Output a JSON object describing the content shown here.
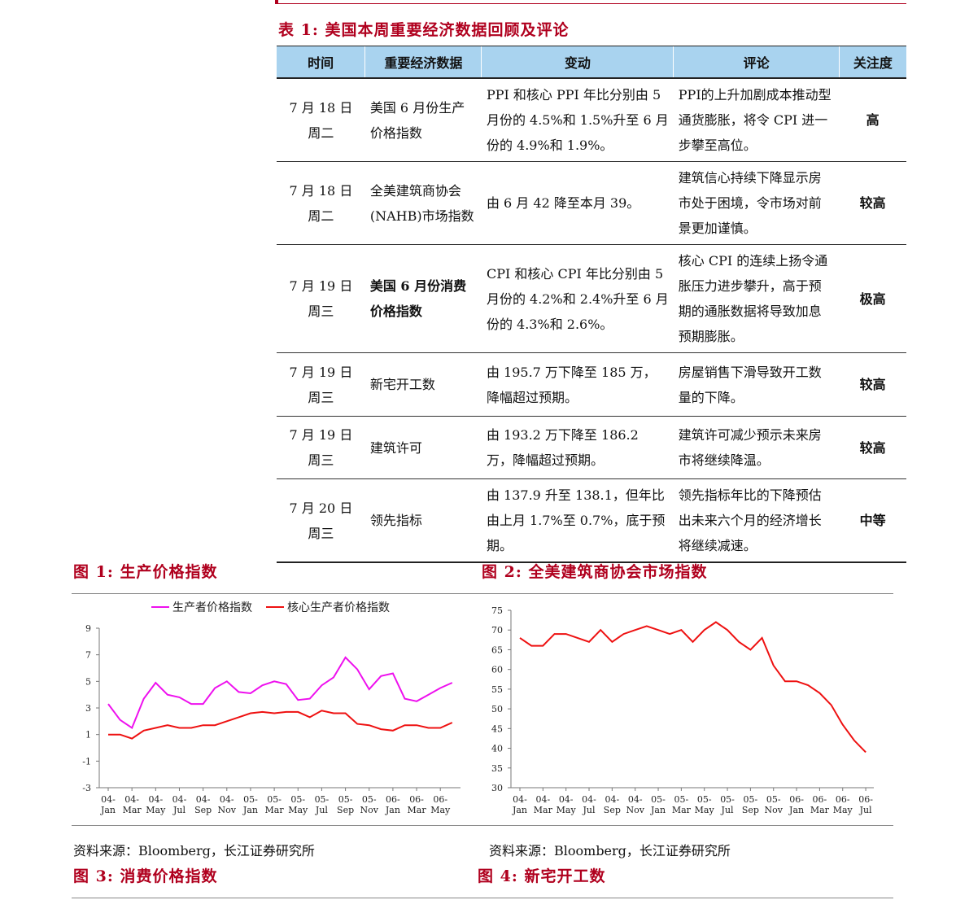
{
  "table": {
    "title": "表 1:  美国本周重要经济数据回顾及评论",
    "headers": [
      "时间",
      "重要经济数据",
      "变动",
      "评论",
      "关注度"
    ],
    "rows": [
      {
        "date": "7 月 18 日",
        "weekday": "周二",
        "indicator": "美国 6 月份生产价格指数",
        "change": "PPI 和核心 PPI 年比分别由 5 月份的 4.5%和 1.5%升至 6 月份的 4.9%和 1.9%。",
        "comment": "PPI的上升加剧成本推动型通货膨胀，将令 CPI 进一步攀至高位。",
        "attention": "高",
        "bold": false
      },
      {
        "date": "7 月 18 日",
        "weekday": "周二",
        "indicator": "全美建筑商协会(NAHB)市场指数",
        "change": "由 6 月 42 降至本月 39。",
        "comment": "建筑信心持续下降显示房市处于困境，令市场对前景更加谨慎。",
        "attention": "较高",
        "bold": false
      },
      {
        "date": "7 月 19 日",
        "weekday": "周三",
        "indicator": "美国 6 月份消费价格指数",
        "change": "CPI 和核心 CPI 年比分别由 5 月份的 4.2%和 2.4%升至 6 月份的 4.3%和 2.6%。",
        "comment": "核心 CPI 的连续上扬令通胀压力进步攀升，高于预期的通胀数据将导致加息预期膨胀。",
        "attention": "极高",
        "bold": true
      },
      {
        "date": "7 月 19 日",
        "weekday": "周三",
        "indicator": "新宅开工数",
        "change": "由 195.7 万下降至 185 万，降幅超过预期。",
        "comment": "房屋销售下滑导致开工数量的下降。",
        "attention": "较高",
        "bold": false
      },
      {
        "date": "7 月 19 日",
        "weekday": "周三",
        "indicator": "建筑许可",
        "change": "由 193.2 万下降至 186.2 万，降幅超过预期。",
        "comment": "建筑许可减少预示未来房市将继续降温。",
        "attention": "较高",
        "bold": false
      },
      {
        "date": "7 月 20 日",
        "weekday": "周三",
        "indicator": "领先指标",
        "change": "由 137.9 升至 138.1，但年比由上月 1.7%至 0.7%，底于预期。",
        "comment": "领先指标年比的下降预估出未来六个月的经济增长将继续减速。",
        "attention": "中等",
        "bold": false
      }
    ]
  },
  "figures": {
    "fig1_title": "图 1:  生产价格指数",
    "fig2_title": "图 2:  全美建筑商协会市场指数",
    "fig3_title": "图 3:  消费价格指数",
    "fig4_title": "图 4:  新宅开工数",
    "source1": "资料来源：Bloomberg，长江证券研究所",
    "source2": "资料来源：Bloomberg，长江证券研究所"
  },
  "chart_data": [
    {
      "type": "line",
      "title": "",
      "xlabel": "",
      "ylabel": "",
      "x": [
        "04-Jan",
        "04-Feb",
        "04-Mar",
        "04-Apr",
        "04-May",
        "04-Jun",
        "04-Jul",
        "04-Aug",
        "04-Sep",
        "04-Oct",
        "04-Nov",
        "04-Dec",
        "05-Jan",
        "05-Feb",
        "05-Mar",
        "05-Apr",
        "05-May",
        "05-Jun",
        "05-Jul",
        "05-Aug",
        "05-Sep",
        "05-Oct",
        "05-Nov",
        "05-Dec",
        "06-Jan",
        "06-Feb",
        "06-Mar",
        "06-Apr",
        "06-May",
        "06-Jun"
      ],
      "tick_labels": [
        [
          "04-",
          "Jan"
        ],
        [
          "04-",
          "Mar"
        ],
        [
          "04-",
          "May"
        ],
        [
          "04-",
          "Jul"
        ],
        [
          "04-",
          "Sep"
        ],
        [
          "04-",
          "Nov"
        ],
        [
          "05-",
          "Jan"
        ],
        [
          "05-",
          "Mar"
        ],
        [
          "05-",
          "May"
        ],
        [
          "05-",
          "Jul"
        ],
        [
          "05-",
          "Sep"
        ],
        [
          "05-",
          "Nov"
        ],
        [
          "06-",
          "Jan"
        ],
        [
          "06-",
          "Mar"
        ],
        [
          "06-",
          "May"
        ]
      ],
      "ylim": [
        -3,
        9
      ],
      "yticks": [
        -3,
        -1,
        1,
        3,
        5,
        7,
        9
      ],
      "legend_position": "top",
      "series": [
        {
          "name": "生产者价格指数",
          "color": "#ee10ee",
          "values": [
            3.3,
            2.1,
            1.5,
            3.7,
            4.9,
            4.0,
            3.8,
            3.3,
            3.3,
            4.5,
            5.0,
            4.2,
            4.1,
            4.7,
            5.0,
            4.8,
            3.6,
            3.7,
            4.7,
            5.3,
            6.8,
            5.9,
            4.4,
            5.4,
            5.6,
            3.7,
            3.5,
            4.0,
            4.5,
            4.9
          ]
        },
        {
          "name": "核心生产者价格指数",
          "color": "#ee1111",
          "values": [
            1.0,
            1.0,
            0.7,
            1.3,
            1.5,
            1.7,
            1.5,
            1.5,
            1.7,
            1.7,
            2.0,
            2.3,
            2.6,
            2.7,
            2.6,
            2.7,
            2.7,
            2.3,
            2.8,
            2.6,
            2.6,
            1.8,
            1.7,
            1.4,
            1.3,
            1.7,
            1.7,
            1.5,
            1.5,
            1.9
          ]
        }
      ]
    },
    {
      "type": "line",
      "title": "",
      "xlabel": "",
      "ylabel": "",
      "x": [
        "04-Jan",
        "04-Feb",
        "04-Mar",
        "04-Apr",
        "04-May",
        "04-Jun",
        "04-Jul",
        "04-Aug",
        "04-Sep",
        "04-Oct",
        "04-Nov",
        "04-Dec",
        "05-Jan",
        "05-Feb",
        "05-Mar",
        "05-Apr",
        "05-May",
        "05-Jun",
        "05-Jul",
        "05-Aug",
        "05-Sep",
        "05-Oct",
        "05-Nov",
        "05-Dec",
        "06-Jan",
        "06-Feb",
        "06-Mar",
        "06-Apr",
        "06-May",
        "06-Jun",
        "06-Jul"
      ],
      "tick_labels": [
        [
          "04-",
          "Jan"
        ],
        [
          "04-",
          "Mar"
        ],
        [
          "04-",
          "May"
        ],
        [
          "04-",
          "Jul"
        ],
        [
          "04-",
          "Sep"
        ],
        [
          "04-",
          "Nov"
        ],
        [
          "05-",
          "Jan"
        ],
        [
          "05-",
          "Mar"
        ],
        [
          "05-",
          "May"
        ],
        [
          "05-",
          "Jul"
        ],
        [
          "05-",
          "Sep"
        ],
        [
          "05-",
          "Nov"
        ],
        [
          "06-",
          "Jan"
        ],
        [
          "06-",
          "Mar"
        ],
        [
          "06-",
          "May"
        ],
        [
          "06-",
          "Jul"
        ]
      ],
      "ylim": [
        30,
        75
      ],
      "yticks": [
        30,
        35,
        40,
        45,
        50,
        55,
        60,
        65,
        70,
        75
      ],
      "series": [
        {
          "color": "#ee1111",
          "values": [
            68,
            66,
            66,
            69,
            69,
            68,
            67,
            70,
            67,
            69,
            70,
            71,
            70,
            69,
            70,
            67,
            70,
            72,
            70,
            67,
            65,
            68,
            61,
            57,
            57,
            56,
            54,
            51,
            46,
            42,
            39
          ]
        }
      ]
    }
  ]
}
